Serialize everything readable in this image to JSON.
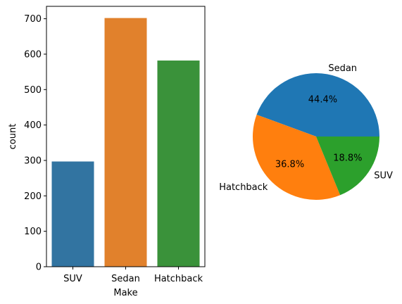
{
  "chart_data": [
    {
      "type": "bar",
      "categories": [
        "SUV",
        "Sedan",
        "Hatchback"
      ],
      "values": [
        297,
        702,
        582
      ],
      "colors": [
        "#3274a1",
        "#e1812c",
        "#3a923a"
      ],
      "xlabel": "Make",
      "ylabel": "count",
      "ylim": [
        0,
        735
      ],
      "yticks": [
        0,
        100,
        200,
        300,
        400,
        500,
        600,
        700
      ],
      "ytick_labels": [
        "0",
        "100",
        "200",
        "300",
        "400",
        "500",
        "600",
        "700"
      ],
      "grid": false
    },
    {
      "type": "pie",
      "labels": [
        "Sedan",
        "Hatchback",
        "SUV"
      ],
      "values": [
        44.4,
        36.8,
        18.8
      ],
      "pct_labels": [
        "44.4%",
        "36.8%",
        "18.8%"
      ],
      "colors": [
        "#1f77b4",
        "#ff7f0e",
        "#2ca02c"
      ],
      "start_angle": 0,
      "direction": "counterclockwise"
    }
  ]
}
